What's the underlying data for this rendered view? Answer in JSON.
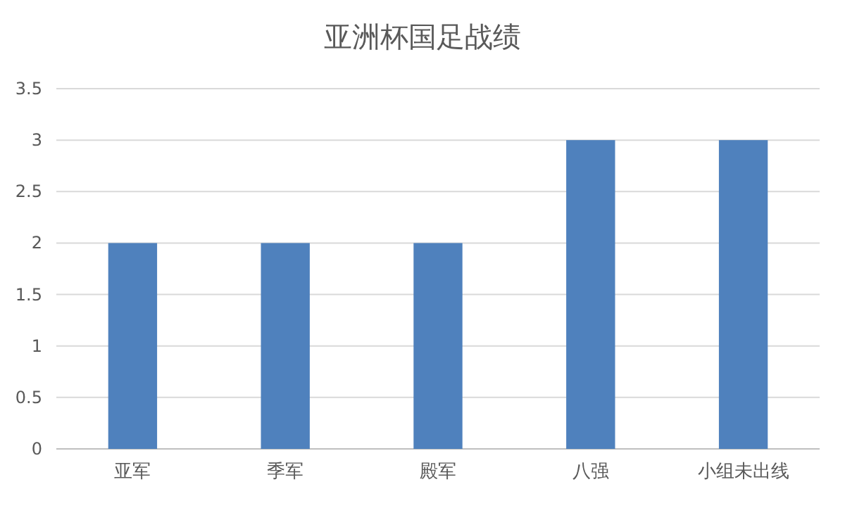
{
  "chart_data": {
    "type": "bar",
    "title": "亚洲杯国足战绩",
    "categories": [
      "亚军",
      "季军",
      "殿军",
      "八强",
      "小组未出线"
    ],
    "values": [
      2,
      2,
      2,
      3,
      3
    ],
    "color": "#4f81bd",
    "ylim": [
      0,
      3.5
    ],
    "yticks": [
      0,
      0.5,
      1,
      1.5,
      2,
      2.5,
      3,
      3.5
    ],
    "grid": "y"
  }
}
